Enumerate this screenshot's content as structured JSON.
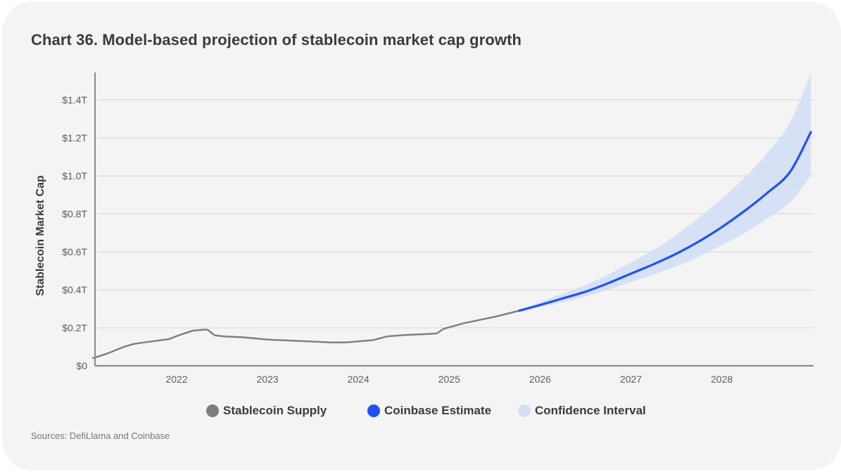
{
  "header": {
    "title": "Chart 36. Model-based projection of stablecoin market cap growth"
  },
  "footer": {
    "source": "Sources: DefiLlama and Coinbase"
  },
  "colors": {
    "background": "#f4f4f4",
    "supply": "#7d7d7d",
    "estimate": "#1f52f5",
    "confidence": "#d4dff4",
    "grid": "#d9d9d9",
    "axis": "#8a8a8a"
  },
  "legend": [
    {
      "label": "Stablecoin Supply",
      "color": "#7d7d7d"
    },
    {
      "label": "Coinbase Estimate",
      "color": "#1f52f5"
    },
    {
      "label": "Confidence Interval",
      "color": "#d4dff4"
    }
  ],
  "chart_data": {
    "type": "line",
    "title": "Chart 36. Model-based projection of stablecoin market cap growth",
    "xlabel": "",
    "ylabel": "Stablecoin Market Cap",
    "xlim": [
      2021.08,
      2028.98
    ],
    "ylim": [
      0,
      1.55
    ],
    "x_ticks": [
      2022,
      2023,
      2024,
      2025,
      2026,
      2027,
      2028
    ],
    "x_tick_labels": [
      "2022",
      "2023",
      "2024",
      "2025",
      "2026",
      "2027",
      "2028"
    ],
    "y_ticks": [
      0,
      0.2,
      0.4,
      0.6,
      0.8,
      1.0,
      1.2,
      1.4
    ],
    "y_tick_labels": [
      "$0",
      "$0.2T",
      "$0.4T",
      "$0.6T",
      "$0.8T",
      "$1.0T",
      "$1.2T",
      "$1.4T"
    ],
    "grid": true,
    "legend_position": "bottom",
    "units": "trillions USD",
    "series": [
      {
        "name": "Stablecoin Supply",
        "kind": "line",
        "x": [
          2021.08,
          2021.24,
          2021.42,
          2021.53,
          2021.67,
          2021.83,
          2021.91,
          2022.05,
          2022.18,
          2022.3,
          2022.34,
          2022.42,
          2022.52,
          2022.73,
          2023.0,
          2023.39,
          2023.7,
          2023.86,
          2024.16,
          2024.32,
          2024.55,
          2024.74,
          2024.86,
          2024.94,
          2025.17,
          2025.4,
          2025.52,
          2025.77
        ],
        "values": [
          0.04,
          0.065,
          0.1,
          0.115,
          0.125,
          0.135,
          0.14,
          0.165,
          0.185,
          0.19,
          0.19,
          0.16,
          0.155,
          0.15,
          0.138,
          0.13,
          0.123,
          0.123,
          0.135,
          0.155,
          0.163,
          0.167,
          0.17,
          0.195,
          0.225,
          0.248,
          0.26,
          0.29
        ]
      },
      {
        "name": "Coinbase Estimate",
        "kind": "line",
        "x": [
          2025.77,
          2026.0,
          2026.25,
          2026.5,
          2026.75,
          2027.0,
          2027.25,
          2027.5,
          2027.75,
          2028.0,
          2028.25,
          2028.5,
          2028.75,
          2028.98
        ],
        "values": [
          0.29,
          0.32,
          0.355,
          0.39,
          0.435,
          0.485,
          0.535,
          0.59,
          0.655,
          0.73,
          0.815,
          0.91,
          1.02,
          1.23
        ]
      },
      {
        "name": "Confidence Interval",
        "kind": "band",
        "x": [
          2025.77,
          2026.0,
          2026.25,
          2026.5,
          2026.75,
          2027.0,
          2027.25,
          2027.5,
          2027.75,
          2028.0,
          2028.25,
          2028.5,
          2028.75,
          2028.98
        ],
        "lower": [
          0.29,
          0.31,
          0.335,
          0.365,
          0.4,
          0.44,
          0.48,
          0.525,
          0.575,
          0.635,
          0.7,
          0.775,
          0.86,
          1.0
        ],
        "upper": [
          0.29,
          0.335,
          0.38,
          0.425,
          0.48,
          0.545,
          0.61,
          0.69,
          0.78,
          0.88,
          0.99,
          1.12,
          1.28,
          1.54
        ]
      }
    ]
  }
}
